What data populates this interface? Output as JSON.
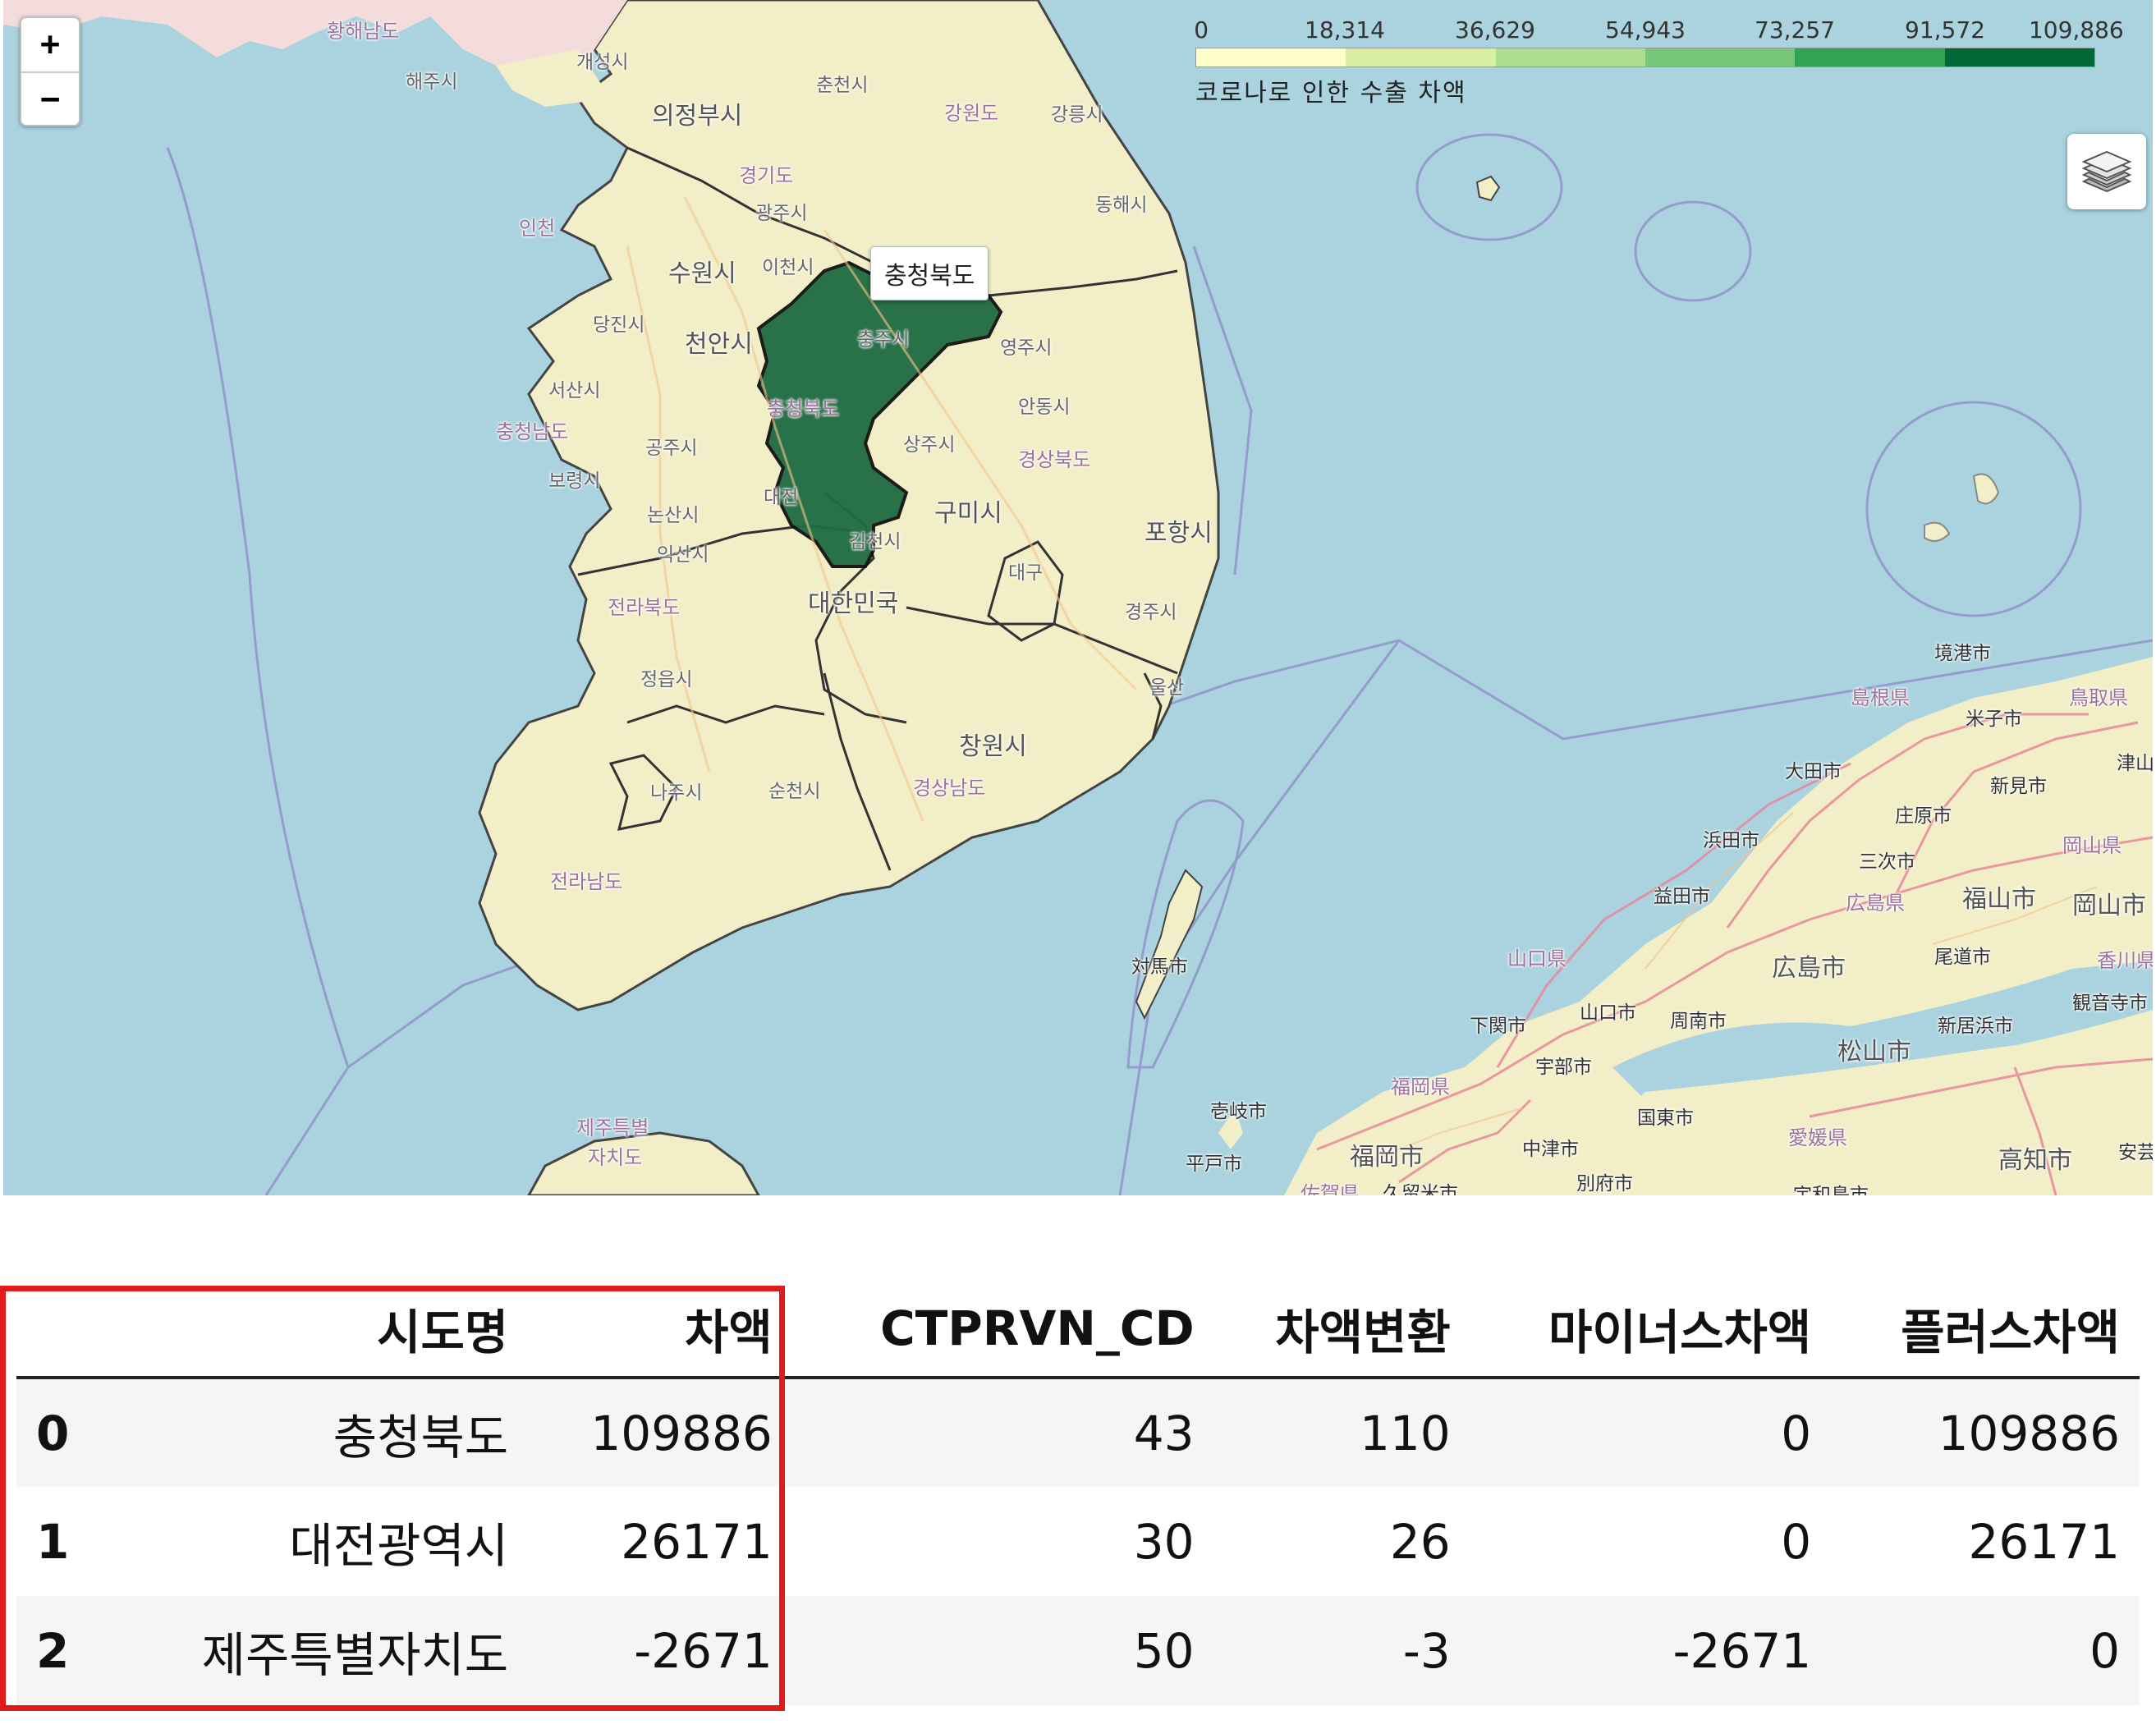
{
  "map": {
    "legend": {
      "ticks": [
        "0",
        "18,314",
        "36,629",
        "54,943",
        "73,257",
        "91,572",
        "109,886"
      ],
      "caption": "코로나로 인한 수출 차액",
      "colors": [
        "#ffffcc",
        "#d9f0a3",
        "#addd8e",
        "#78c679",
        "#31a354",
        "#006837"
      ]
    },
    "tooltip": "충청북도",
    "highlight_color": "#1e6b43",
    "zoom": {
      "in_label": "+",
      "out_label": "−"
    },
    "layers_icon": "layers-icon",
    "places": {
      "hwanghae": "황해남도",
      "haeju": "해주시",
      "kaesong": "개성시",
      "uijeongbu": "의정부시",
      "chuncheon": "춘천시",
      "gangwon": "강원도",
      "gangneung": "강릉시",
      "donghae": "동해시",
      "gyeonggi": "경기도",
      "gwangju_g": "광주시",
      "incheon": "인천",
      "suwon": "수원시",
      "icheon": "이천시",
      "dangjin": "당진시",
      "cheonan": "천안시",
      "chungju": "충주시",
      "yeongju": "영주시",
      "seosan": "서산시",
      "chungnam": "충청남도",
      "chungbuk": "충청북도",
      "andong": "안동시",
      "gongju": "공주시",
      "sangju": "상주시",
      "gyeongbuk": "경상북도",
      "boryeong": "보령시",
      "daejeon": "대전",
      "gumi": "구미시",
      "pohang": "포항시",
      "nonsan": "논산시",
      "gimcheon": "김천시",
      "iksan": "익산시",
      "jeonbuk": "전라북도",
      "korea": "대한민국",
      "daegu": "대구",
      "gyeongju": "경주시",
      "jeongeup": "정읍시",
      "ulsan": "울산",
      "changwon": "창원시",
      "naju": "나주시",
      "suncheon": "순천시",
      "gyeongnam": "경상남도",
      "jeonnam": "전라남도",
      "jeju1": "제주특별",
      "jeju2": "자치도",
      "tsushima": "対馬市",
      "iki": "壱岐市",
      "hirado": "平戸市",
      "fukuoka": "福岡市",
      "saga": "佐賀県",
      "kurume": "久留米市",
      "nakatsu": "中津市",
      "beppu": "別府市",
      "kunisaki": "国東市",
      "ube": "宇部市",
      "shimonoseki": "下関市",
      "yamaguchi_c": "山口市",
      "shunan": "周南市",
      "yamaguchi": "山口県",
      "fukuoka_pref": "福岡県",
      "hiroshima_c": "広島市",
      "hiroshima": "広島県",
      "masuda": "益田市",
      "hamada": "浜田市",
      "ohda": "大田市",
      "shimane": "島根県",
      "sakaiminato": "境港市",
      "yonago": "米子市",
      "tottori": "鳥取県",
      "shobara": "庄原市",
      "miyoshi": "三次市",
      "fukuyama": "福山市",
      "okayama_c": "岡山市",
      "okayama": "岡山県",
      "niimi": "新見市",
      "onomichi": "尾道市",
      "matsuyama": "松山市",
      "niihama": "新居浜市",
      "ehime": "愛媛県",
      "kochi": "高知市",
      "uwajima": "宇和島市",
      "kagawa": "香川県",
      "kanonji": "観音寺市",
      "tsuyama": "津山市",
      "aki": "安芸"
    }
  },
  "table": {
    "columns": [
      "",
      "시도명",
      "차액",
      "CTPRVN_CD",
      "차액변환",
      "마이너스차액",
      "플러스차액"
    ],
    "rows": [
      [
        "0",
        "충청북도",
        "109886",
        "43",
        "110",
        "0",
        "109886"
      ],
      [
        "1",
        "대전광역시",
        "26171",
        "30",
        "26",
        "0",
        "26171"
      ],
      [
        "2",
        "제주특별자치도",
        "-2671",
        "50",
        "-3",
        "-2671",
        "0"
      ]
    ]
  }
}
